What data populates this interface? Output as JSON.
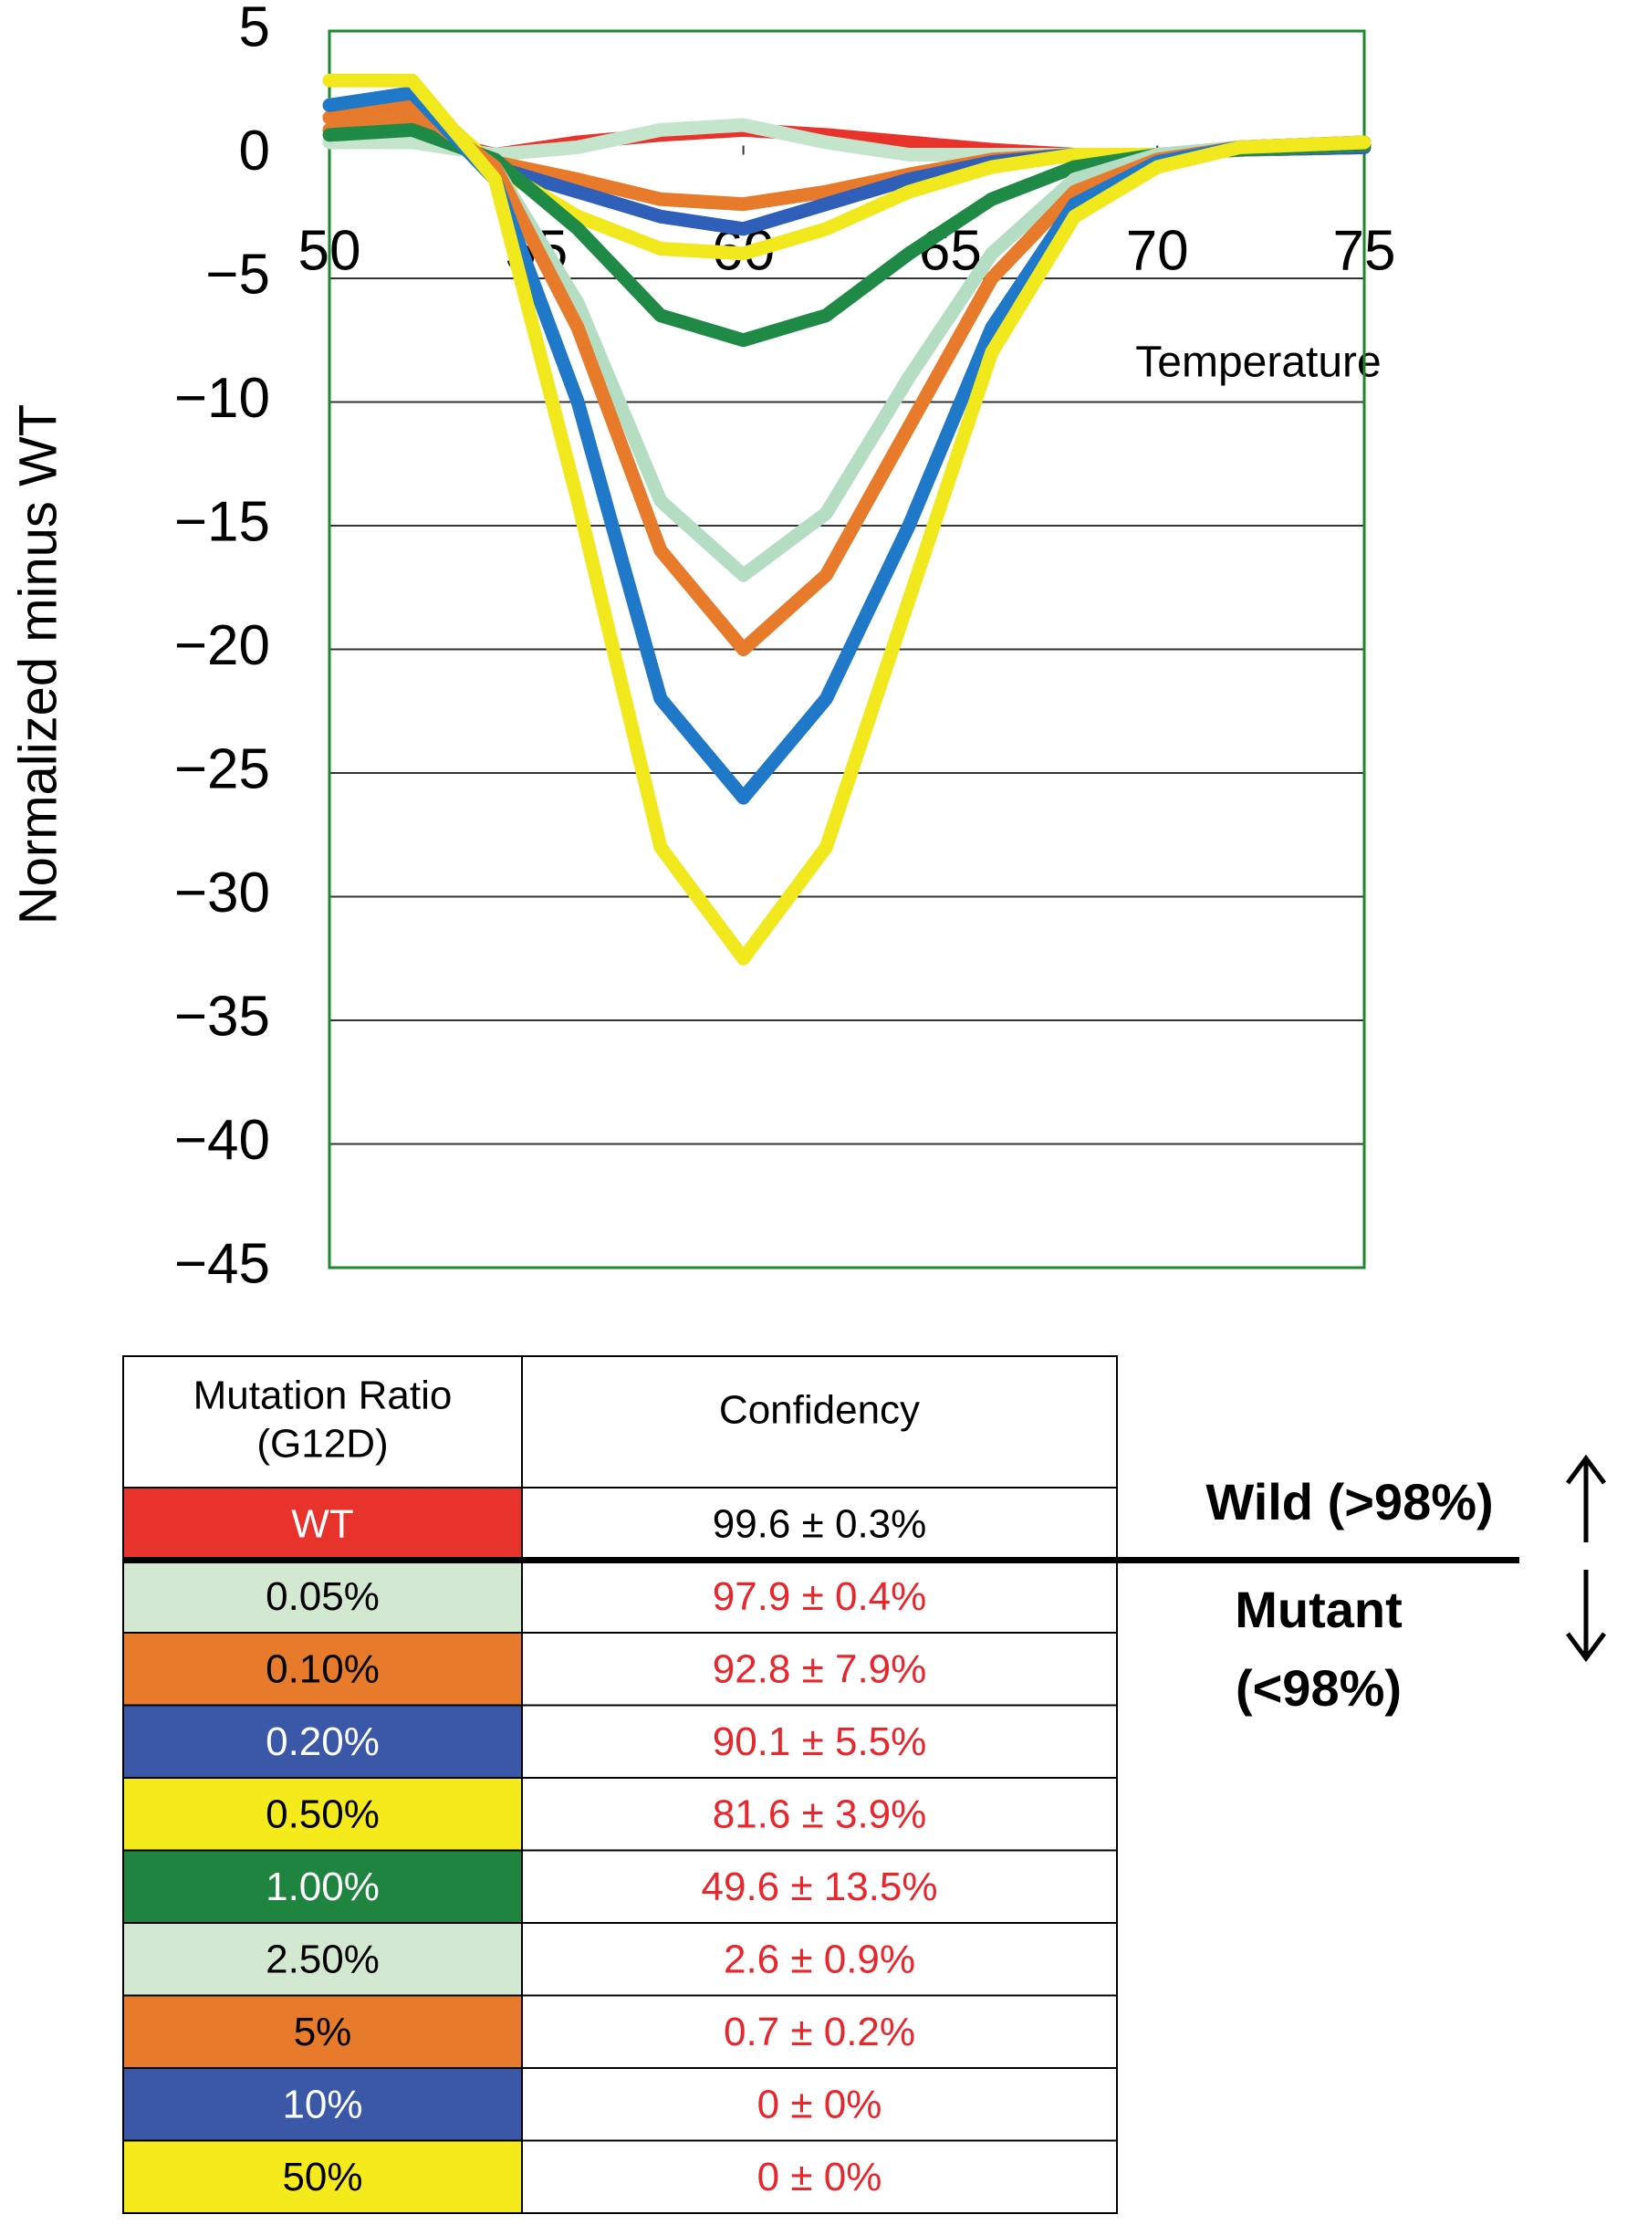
{
  "chart_data": {
    "type": "line",
    "ylabel": "Normalized minus WT",
    "xlabel": "Temperature",
    "x": [
      50,
      52,
      54,
      56,
      58,
      60,
      62,
      64,
      66,
      68,
      70,
      72,
      75
    ],
    "series": [
      {
        "color": "#e8322c",
        "values": [
          1,
          0.8,
          0,
          0.5,
          0.8,
          1,
          0.8,
          0.5,
          0.2,
          0,
          0,
          0.2,
          0.3
        ]
      },
      {
        "color": "#c5e4cc",
        "values": [
          0.5,
          0.5,
          0,
          0.3,
          1,
          1.2,
          0.5,
          0,
          0,
          0,
          0,
          0.2,
          0.3
        ]
      },
      {
        "color": "#e87a2c",
        "values": [
          1,
          1.5,
          -0.3,
          -1,
          -1.8,
          -2,
          -1.5,
          -0.8,
          -0.2,
          0,
          0,
          0.2,
          0.3
        ]
      },
      {
        "color": "#2f5fb8",
        "values": [
          1.5,
          2,
          -0.5,
          -1.5,
          -2.5,
          -3,
          -2,
          -1,
          -0.3,
          0,
          0,
          0.2,
          0.3
        ]
      },
      {
        "color": "#f2e81e",
        "values": [
          2,
          2.5,
          -0.5,
          -2.5,
          -3.8,
          -4,
          -3,
          -1.5,
          -0.5,
          0,
          0,
          0.2,
          0.4
        ]
      },
      {
        "color": "#1f8a45",
        "values": [
          0.8,
          1,
          -0.2,
          -3,
          -6.5,
          -7.5,
          -6.5,
          -4,
          -1.8,
          -0.5,
          0,
          0.2,
          0.4
        ]
      },
      {
        "color": "#b5ddc4",
        "values": [
          1.5,
          2,
          -0.5,
          -6,
          -14,
          -17,
          -14.5,
          -9,
          -4,
          -1,
          0,
          0.3,
          0.5
        ]
      },
      {
        "color": "#e87a2c",
        "values": [
          1.5,
          2,
          -0.5,
          -7,
          -16,
          -20,
          -17,
          -11,
          -5,
          -1.5,
          -0.2,
          0.3,
          0.5
        ]
      },
      {
        "color": "#1f78c8",
        "values": [
          2,
          2.5,
          -1,
          -10,
          -22,
          -26,
          -22,
          -15,
          -7,
          -2,
          -0.3,
          0.3,
          0.5
        ]
      },
      {
        "color": "#f2e81e",
        "values": [
          3,
          3,
          -1,
          -14,
          -28,
          -32.5,
          -28,
          -18,
          -8,
          -2.5,
          -0.5,
          0.3,
          0.5
        ]
      }
    ],
    "xlim": [
      50,
      75
    ],
    "xticks": [
      50,
      55,
      60,
      65,
      70,
      75
    ],
    "ylim": [
      -45,
      5
    ],
    "yticks": [
      5,
      0,
      {
        "value": -5,
        "label": "−5"
      },
      {
        "value": -10,
        "label": "−10"
      },
      {
        "value": -15,
        "label": "−15"
      },
      {
        "value": -20,
        "label": "−20"
      },
      {
        "value": -25,
        "label": "−25"
      },
      {
        "value": -30,
        "label": "−30"
      },
      {
        "value": -35,
        "label": "−35"
      },
      {
        "value": -40,
        "label": "−40"
      },
      {
        "value": -45,
        "label": "−45"
      }
    ],
    "grid": true
  },
  "table": {
    "header": [
      "Mutation Ratio (G12D)",
      "Confidency"
    ],
    "rows": [
      {
        "ratio": "WT",
        "confidency": "99.6 ± 0.3%",
        "color": "#e8322c"
      },
      {
        "ratio": "0.05%",
        "confidency": "97.9 ± 0.4%",
        "color": "#d3e8d0"
      },
      {
        "ratio": "0.10%",
        "confidency": "92.8 ± 7.9%",
        "color": "#e87a2c"
      },
      {
        "ratio": "0.20%",
        "confidency": "90.1 ± 5.5%",
        "color": "#3a57a8"
      },
      {
        "ratio": "0.50%",
        "confidency": "81.6 ± 3.9%",
        "color": "#f5eb1c"
      },
      {
        "ratio": "1.00%",
        "confidency": "49.6 ± 13.5%",
        "color": "#1f8440"
      },
      {
        "ratio": "2.50%",
        "confidency": "2.6 ± 0.9%",
        "color": "#d3e8d0"
      },
      {
        "ratio": "5%",
        "confidency": "0.7 ± 0.2%",
        "color": "#e87a2c"
      },
      {
        "ratio": "10%",
        "confidency": "0 ± 0%",
        "color": "#3a57a8"
      },
      {
        "ratio": "50%",
        "confidency": "0 ± 0%",
        "color": "#f5eb1c"
      }
    ]
  },
  "annotations": {
    "wild": "Wild (>98%)",
    "mutant_1": "Mutant",
    "mutant_2": "(<98%)"
  }
}
